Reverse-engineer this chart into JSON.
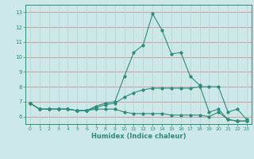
{
  "x": [
    0,
    1,
    2,
    3,
    4,
    5,
    6,
    7,
    8,
    9,
    10,
    11,
    12,
    13,
    14,
    15,
    16,
    17,
    18,
    19,
    20,
    21,
    22,
    23
  ],
  "line1": [
    6.9,
    6.5,
    6.5,
    6.5,
    6.5,
    6.4,
    6.4,
    6.7,
    6.9,
    7.0,
    8.7,
    10.3,
    10.8,
    12.9,
    11.8,
    10.2,
    10.3,
    8.7,
    8.1,
    6.3,
    6.5,
    5.8,
    5.7,
    5.7
  ],
  "line2": [
    6.9,
    6.5,
    6.5,
    6.5,
    6.5,
    6.4,
    6.4,
    6.5,
    6.5,
    6.5,
    6.3,
    6.2,
    6.2,
    6.2,
    6.2,
    6.1,
    6.1,
    6.1,
    6.1,
    6.0,
    6.3,
    5.8,
    5.7,
    5.7
  ],
  "line3": [
    6.9,
    6.5,
    6.5,
    6.5,
    6.5,
    6.4,
    6.4,
    6.6,
    6.8,
    6.9,
    7.3,
    7.6,
    7.8,
    7.9,
    7.9,
    7.9,
    7.9,
    7.9,
    8.0,
    8.0,
    8.0,
    6.3,
    6.5,
    5.8
  ],
  "line_color": "#2e8b7a",
  "bg_color": "#cce8e8",
  "hgrid_color": "#d08080",
  "vgrid_color": "#b8d0d0",
  "xlabel": "Humidex (Indice chaleur)",
  "xlim": [
    -0.5,
    23.5
  ],
  "ylim": [
    5.5,
    13.5
  ],
  "yticks": [
    6,
    7,
    8,
    9,
    10,
    11,
    12,
    13
  ],
  "xticks": [
    0,
    1,
    2,
    3,
    4,
    5,
    6,
    7,
    8,
    9,
    10,
    11,
    12,
    13,
    14,
    15,
    16,
    17,
    18,
    19,
    20,
    21,
    22,
    23
  ]
}
